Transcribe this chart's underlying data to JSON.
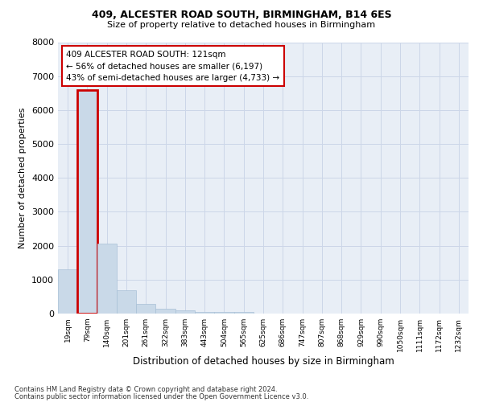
{
  "title1": "409, ALCESTER ROAD SOUTH, BIRMINGHAM, B14 6ES",
  "title2": "Size of property relative to detached houses in Birmingham",
  "xlabel": "Distribution of detached houses by size in Birmingham",
  "ylabel": "Number of detached properties",
  "footer1": "Contains HM Land Registry data © Crown copyright and database right 2024.",
  "footer2": "Contains public sector information licensed under the Open Government Licence v3.0.",
  "bin_labels": [
    "19sqm",
    "79sqm",
    "140sqm",
    "201sqm",
    "261sqm",
    "322sqm",
    "383sqm",
    "443sqm",
    "504sqm",
    "565sqm",
    "625sqm",
    "686sqm",
    "747sqm",
    "807sqm",
    "868sqm",
    "929sqm",
    "990sqm",
    "1050sqm",
    "1111sqm",
    "1172sqm",
    "1232sqm"
  ],
  "bar_values": [
    1300,
    6600,
    2070,
    690,
    280,
    150,
    90,
    55,
    55,
    55,
    0,
    0,
    0,
    0,
    0,
    0,
    0,
    0,
    0,
    0,
    0
  ],
  "bar_color": "#c9d9e8",
  "bar_edge_color": "#a8c0d6",
  "highlight_bar_index": 1,
  "highlight_color": "#cc0000",
  "annot_line1": "409 ALCESTER ROAD SOUTH: 121sqm",
  "annot_line2": "← 56% of detached houses are smaller (6,197)",
  "annot_line3": "43% of semi-detached houses are larger (4,733) →",
  "annot_box_color": "#ffffff",
  "annot_box_edge": "#cc0000",
  "ylim": [
    0,
    8000
  ],
  "yticks": [
    0,
    1000,
    2000,
    3000,
    4000,
    5000,
    6000,
    7000,
    8000
  ],
  "grid_color": "#ccd6e8",
  "bg_color": "#e8eef6"
}
